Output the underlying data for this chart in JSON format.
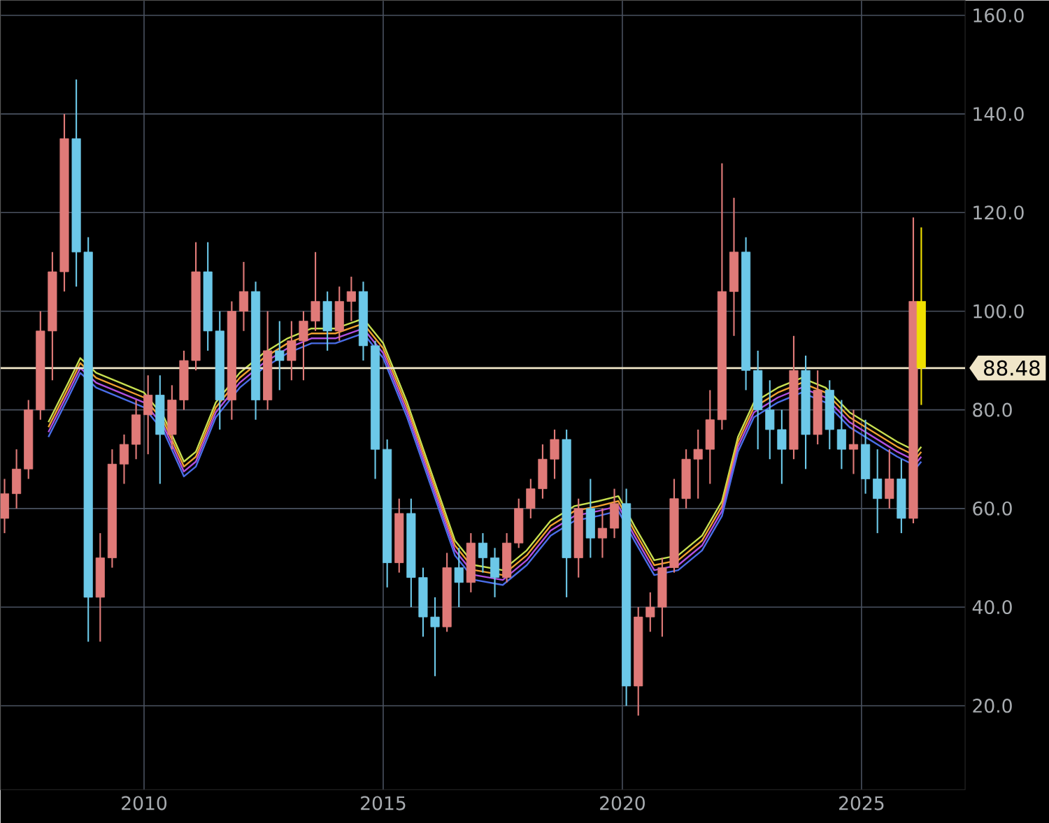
{
  "chart_data": {
    "type": "candlestick",
    "x": [
      "2007-02",
      "2007-05",
      "2007-08",
      "2007-11",
      "2008-02",
      "2008-05",
      "2008-08",
      "2008-11",
      "2009-02",
      "2009-05",
      "2009-08",
      "2009-11",
      "2010-02",
      "2010-05",
      "2010-08",
      "2010-11",
      "2011-02",
      "2011-05",
      "2011-08",
      "2011-11",
      "2012-02",
      "2012-05",
      "2012-08",
      "2012-11",
      "2013-02",
      "2013-05",
      "2013-08",
      "2013-11",
      "2014-02",
      "2014-05",
      "2014-08",
      "2014-11",
      "2015-02",
      "2015-05",
      "2015-08",
      "2015-11",
      "2016-02",
      "2016-05",
      "2016-08",
      "2016-11",
      "2017-02",
      "2017-05",
      "2017-08",
      "2017-11",
      "2018-02",
      "2018-05",
      "2018-08",
      "2018-11",
      "2019-02",
      "2019-05",
      "2019-08",
      "2019-11",
      "2020-02",
      "2020-05",
      "2020-08",
      "2020-11",
      "2021-02",
      "2021-05",
      "2021-08",
      "2021-11",
      "2022-02",
      "2022-05",
      "2022-08",
      "2022-11",
      "2023-02",
      "2023-05",
      "2023-08",
      "2023-11",
      "2024-02",
      "2024-05",
      "2024-08",
      "2024-11",
      "2025-02",
      "2025-05",
      "2025-08",
      "2025-11",
      "2026-02",
      "2026-04"
    ],
    "ohlc": [
      [
        58,
        66,
        55,
        63
      ],
      [
        63,
        72,
        60,
        68
      ],
      [
        68,
        82,
        66,
        80
      ],
      [
        80,
        100,
        78,
        96
      ],
      [
        96,
        112,
        86,
        108
      ],
      [
        108,
        140,
        104,
        135
      ],
      [
        135,
        147,
        105,
        112
      ],
      [
        112,
        115,
        33,
        42
      ],
      [
        42,
        55,
        33,
        50
      ],
      [
        50,
        72,
        48,
        69
      ],
      [
        69,
        75,
        65,
        73
      ],
      [
        73,
        82,
        70,
        79
      ],
      [
        79,
        87,
        71,
        83
      ],
      [
        83,
        87,
        65,
        75
      ],
      [
        75,
        85,
        72,
        82
      ],
      [
        82,
        92,
        80,
        90
      ],
      [
        90,
        114,
        88,
        108
      ],
      [
        108,
        114,
        92,
        96
      ],
      [
        96,
        100,
        76,
        82
      ],
      [
        82,
        102,
        78,
        100
      ],
      [
        100,
        110,
        96,
        104
      ],
      [
        104,
        106,
        78,
        82
      ],
      [
        82,
        100,
        80,
        92
      ],
      [
        92,
        98,
        84,
        90
      ],
      [
        90,
        98,
        86,
        94
      ],
      [
        94,
        100,
        86,
        98
      ],
      [
        98,
        112,
        96,
        102
      ],
      [
        102,
        104,
        92,
        96
      ],
      [
        96,
        105,
        94,
        102
      ],
      [
        102,
        107,
        98,
        104
      ],
      [
        104,
        106,
        90,
        93
      ],
      [
        93,
        94,
        66,
        72
      ],
      [
        72,
        74,
        44,
        49
      ],
      [
        49,
        62,
        47,
        59
      ],
      [
        59,
        62,
        40,
        46
      ],
      [
        46,
        48,
        34,
        38
      ],
      [
        38,
        42,
        26,
        36
      ],
      [
        36,
        51,
        35,
        48
      ],
      [
        48,
        52,
        40,
        45
      ],
      [
        45,
        55,
        43,
        53
      ],
      [
        53,
        55,
        47,
        50
      ],
      [
        50,
        52,
        42,
        46
      ],
      [
        46,
        55,
        45,
        53
      ],
      [
        53,
        62,
        52,
        60
      ],
      [
        60,
        66,
        58,
        64
      ],
      [
        64,
        73,
        62,
        70
      ],
      [
        70,
        76,
        66,
        74
      ],
      [
        74,
        76,
        42,
        50
      ],
      [
        50,
        62,
        46,
        60
      ],
      [
        60,
        66,
        50,
        54
      ],
      [
        54,
        60,
        50,
        56
      ],
      [
        56,
        64,
        54,
        61
      ],
      [
        61,
        64,
        20,
        24
      ],
      [
        24,
        40,
        18,
        38
      ],
      [
        38,
        43,
        35,
        40
      ],
      [
        40,
        50,
        34,
        48
      ],
      [
        48,
        66,
        47,
        62
      ],
      [
        62,
        72,
        60,
        70
      ],
      [
        70,
        76,
        62,
        72
      ],
      [
        72,
        84,
        65,
        78
      ],
      [
        78,
        130,
        76,
        104
      ],
      [
        104,
        123,
        95,
        112
      ],
      [
        112,
        115,
        84,
        88
      ],
      [
        88,
        92,
        72,
        80
      ],
      [
        80,
        86,
        70,
        76
      ],
      [
        76,
        80,
        65,
        72
      ],
      [
        72,
        95,
        70,
        88
      ],
      [
        88,
        91,
        68,
        75
      ],
      [
        75,
        88,
        73,
        84
      ],
      [
        84,
        86,
        72,
        76
      ],
      [
        76,
        82,
        68,
        72
      ],
      [
        72,
        80,
        67,
        73
      ],
      [
        73,
        78,
        63,
        66
      ],
      [
        66,
        72,
        55,
        62
      ],
      [
        62,
        72,
        60,
        66
      ],
      [
        66,
        70,
        55,
        58
      ],
      [
        58,
        119,
        57,
        102
      ],
      [
        102,
        117,
        81,
        88.48
      ]
    ],
    "colors": [
      "#e07a78",
      "#e07a78",
      "#e07a78",
      "#e07a78",
      "#e07a78",
      "#e07a78",
      "#6cc8e8",
      "#6cc8e8",
      "#e07a78",
      "#e07a78",
      "#e07a78",
      "#e07a78",
      "#e07a78",
      "#6cc8e8",
      "#e07a78",
      "#e07a78",
      "#e07a78",
      "#6cc8e8",
      "#6cc8e8",
      "#e07a78",
      "#e07a78",
      "#6cc8e8",
      "#e07a78",
      "#6cc8e8",
      "#e07a78",
      "#e07a78",
      "#e07a78",
      "#6cc8e8",
      "#e07a78",
      "#e07a78",
      "#6cc8e8",
      "#6cc8e8",
      "#6cc8e8",
      "#e07a78",
      "#6cc8e8",
      "#6cc8e8",
      "#6cc8e8",
      "#e07a78",
      "#6cc8e8",
      "#e07a78",
      "#6cc8e8",
      "#6cc8e8",
      "#e07a78",
      "#e07a78",
      "#e07a78",
      "#e07a78",
      "#e07a78",
      "#6cc8e8",
      "#e07a78",
      "#6cc8e8",
      "#e07a78",
      "#e07a78",
      "#6cc8e8",
      "#e07a78",
      "#e07a78",
      "#e07a78",
      "#e07a78",
      "#e07a78",
      "#e07a78",
      "#e07a78",
      "#e07a78",
      "#e07a78",
      "#6cc8e8",
      "#6cc8e8",
      "#6cc8e8",
      "#6cc8e8",
      "#e07a78",
      "#6cc8e8",
      "#e07a78",
      "#6cc8e8",
      "#6cc8e8",
      "#e07a78",
      "#6cc8e8",
      "#6cc8e8",
      "#e07a78",
      "#6cc8e8",
      "#e07a78",
      "#f0e000"
    ],
    "series": [
      {
        "type": "line",
        "color": "#c8e050",
        "x": [
          "2008-01",
          "2008-06",
          "2008-09",
          "2009-01",
          "2009-07",
          "2010-01",
          "2010-06",
          "2010-11",
          "2011-02",
          "2011-07",
          "2012-01",
          "2012-07",
          "2013-01",
          "2013-07",
          "2014-01",
          "2014-08",
          "2015-01",
          "2015-07",
          "2016-01",
          "2016-07",
          "2016-12",
          "2017-07",
          "2018-01",
          "2018-07",
          "2019-01",
          "2019-07",
          "2019-12",
          "2020-04",
          "2020-09",
          "2021-03",
          "2021-09",
          "2022-02",
          "2022-06",
          "2022-10",
          "2023-04",
          "2023-10",
          "2024-04",
          "2024-10",
          "2025-04",
          "2025-10",
          "2026-03",
          "2026-04"
        ],
        "values": [
          77.5,
          85.5,
          90.5,
          87.5,
          85.5,
          83.5,
          78.5,
          69.5,
          71.5,
          81.5,
          87.5,
          91.5,
          94.5,
          96.5,
          96.5,
          98.5,
          93.5,
          81.5,
          67.5,
          53.5,
          48.5,
          47.5,
          51.5,
          57.5,
          60.5,
          61.5,
          62.5,
          56.5,
          49.5,
          50.5,
          54.5,
          61.5,
          74.5,
          81.5,
          84.5,
          86.5,
          84.5,
          79.5,
          76.5,
          73.5,
          71.5,
          72.5
        ]
      },
      {
        "type": "line",
        "color": "#f0a030",
        "x": [
          "2008-01",
          "2008-06",
          "2008-09",
          "2009-01",
          "2009-07",
          "2010-01",
          "2010-06",
          "2010-11",
          "2011-02",
          "2011-07",
          "2012-01",
          "2012-07",
          "2013-01",
          "2013-07",
          "2014-01",
          "2014-08",
          "2015-01",
          "2015-07",
          "2016-01",
          "2016-07",
          "2016-12",
          "2017-07",
          "2018-01",
          "2018-07",
          "2019-01",
          "2019-07",
          "2019-12",
          "2020-04",
          "2020-09",
          "2021-03",
          "2021-09",
          "2022-02",
          "2022-06",
          "2022-10",
          "2023-04",
          "2023-10",
          "2024-04",
          "2024-10",
          "2025-04",
          "2025-10",
          "2026-03",
          "2026-04"
        ],
        "values": [
          76.5,
          84.5,
          89.5,
          86.5,
          84.5,
          82.5,
          77.5,
          68.5,
          70.5,
          80.5,
          86.5,
          90.5,
          93.5,
          95.5,
          95.5,
          97.5,
          92.5,
          80.5,
          66.5,
          52.5,
          47.5,
          46.5,
          50.5,
          56.5,
          59.5,
          60.5,
          61.5,
          55.5,
          48.5,
          49.5,
          53.5,
          60.5,
          73.5,
          80.5,
          83.5,
          85.5,
          83.5,
          78.5,
          75.5,
          72.5,
          70.5,
          71.5
        ]
      },
      {
        "type": "line",
        "color": "#b050e0",
        "x": [
          "2008-01",
          "2008-06",
          "2008-09",
          "2009-01",
          "2009-07",
          "2010-01",
          "2010-06",
          "2010-11",
          "2011-02",
          "2011-07",
          "2012-01",
          "2012-07",
          "2013-01",
          "2013-07",
          "2014-01",
          "2014-08",
          "2015-01",
          "2015-07",
          "2016-01",
          "2016-07",
          "2016-12",
          "2017-07",
          "2018-01",
          "2018-07",
          "2019-01",
          "2019-07",
          "2019-12",
          "2020-04",
          "2020-09",
          "2021-03",
          "2021-09",
          "2022-02",
          "2022-06",
          "2022-10",
          "2023-04",
          "2023-10",
          "2024-04",
          "2024-10",
          "2025-04",
          "2025-10",
          "2026-03",
          "2026-04"
        ],
        "values": [
          75.5,
          83.5,
          88.5,
          85.5,
          83.5,
          81.5,
          76.5,
          67.5,
          69.5,
          79.5,
          85.5,
          89.5,
          92.5,
          94.5,
          94.5,
          96.5,
          91.5,
          79.5,
          65.5,
          51.5,
          46.5,
          45.5,
          49.5,
          55.5,
          58.5,
          59.5,
          60.5,
          54.5,
          47.5,
          48.5,
          52.5,
          59.5,
          72.5,
          79.5,
          82.5,
          84.5,
          82.5,
          77.5,
          74.5,
          71.5,
          69.5,
          70.5
        ]
      },
      {
        "type": "line",
        "color": "#4a6ee8",
        "x": [
          "2008-01",
          "2008-06",
          "2008-09",
          "2009-01",
          "2009-07",
          "2010-01",
          "2010-06",
          "2010-11",
          "2011-02",
          "2011-07",
          "2012-01",
          "2012-07",
          "2013-01",
          "2013-07",
          "2014-01",
          "2014-08",
          "2015-01",
          "2015-07",
          "2016-01",
          "2016-07",
          "2016-12",
          "2017-07",
          "2018-01",
          "2018-07",
          "2019-01",
          "2019-07",
          "2019-12",
          "2020-04",
          "2020-09",
          "2021-03",
          "2021-09",
          "2022-02",
          "2022-06",
          "2022-10",
          "2023-04",
          "2023-10",
          "2024-04",
          "2024-10",
          "2025-04",
          "2025-10",
          "2026-03",
          "2026-04"
        ],
        "values": [
          74.5,
          82.5,
          87.5,
          84.5,
          82.5,
          80.5,
          75.5,
          66.5,
          68.5,
          78.5,
          84.5,
          88.5,
          91.5,
          93.5,
          93.5,
          95.5,
          90.5,
          78.5,
          64.5,
          50.5,
          45.5,
          44.5,
          48.5,
          54.5,
          57.5,
          58.5,
          59.5,
          53.5,
          46.5,
          47.5,
          51.5,
          58.5,
          71.5,
          78.5,
          81.5,
          83.5,
          81.5,
          76.5,
          73.5,
          70.5,
          68.5,
          69.5
        ]
      }
    ],
    "ref_lines": [
      {
        "axis": "y",
        "value": 88.48,
        "label": "88.48",
        "color": "#f0e6c8"
      }
    ],
    "xlim": [
      "2007-01",
      "2027-03"
    ],
    "ylim": [
      3,
      163
    ],
    "xticks": [
      "2010",
      "2015",
      "2020",
      "2025"
    ],
    "yticks": [
      {
        "value": 20,
        "label": "20.0"
      },
      {
        "value": 40,
        "label": "40.0"
      },
      {
        "value": 60,
        "label": "60.0"
      },
      {
        "value": 80,
        "label": "80.0"
      },
      {
        "value": 100,
        "label": "100.0"
      },
      {
        "value": 120,
        "label": "120.0"
      },
      {
        "value": 140,
        "label": "140.0"
      },
      {
        "value": 160,
        "label": "160.0"
      }
    ],
    "grid": true
  }
}
